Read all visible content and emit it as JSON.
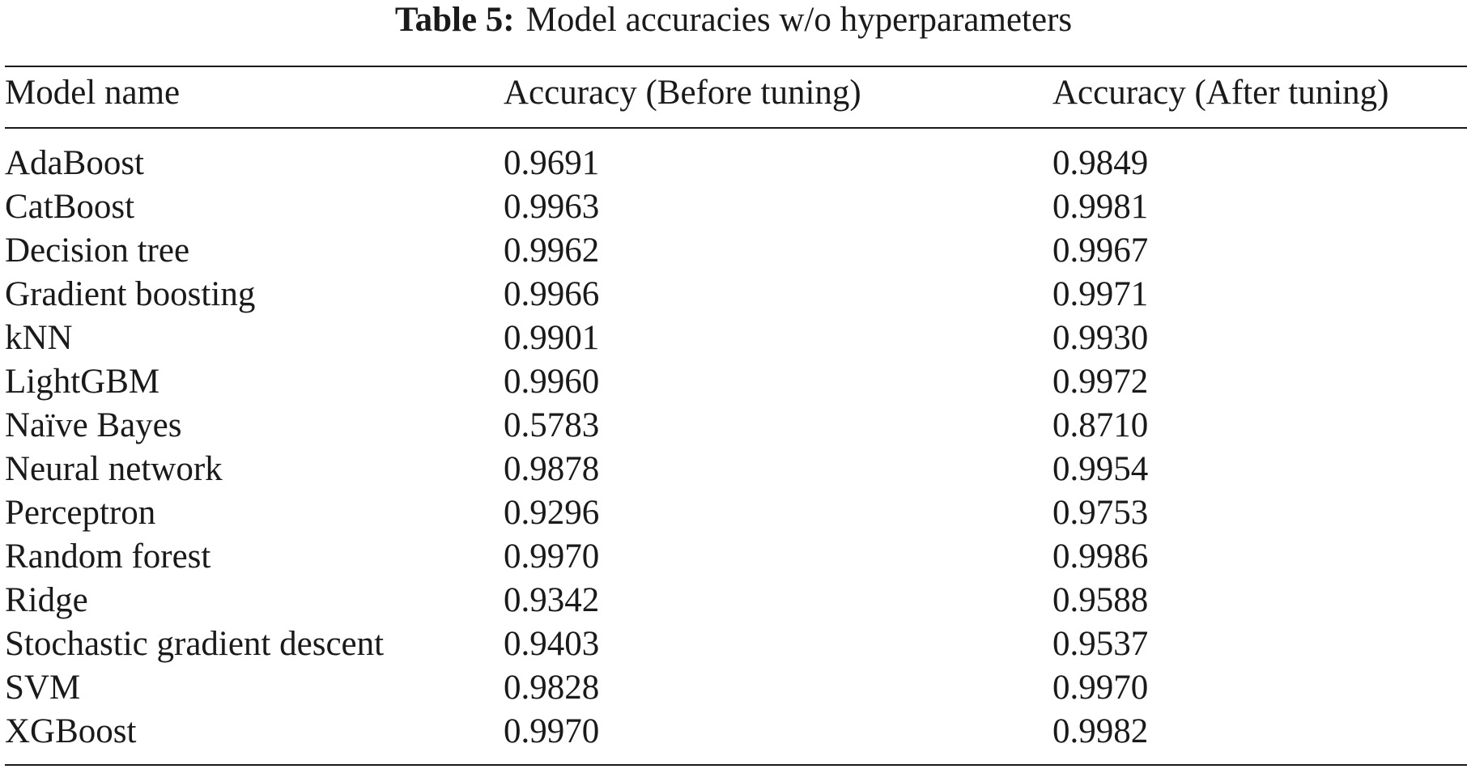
{
  "table": {
    "caption_label": "Table 5:",
    "caption_text": "Model accuracies w/o hyperparameters",
    "columns": [
      "Model name",
      "Accuracy (Before tuning)",
      "Accuracy (After tuning)"
    ],
    "rows": [
      [
        "AdaBoost",
        "0.9691",
        "0.9849"
      ],
      [
        "CatBoost",
        "0.9963",
        "0.9981"
      ],
      [
        "Decision tree",
        "0.9962",
        "0.9967"
      ],
      [
        "Gradient boosting",
        "0.9966",
        "0.9971"
      ],
      [
        "kNN",
        "0.9901",
        "0.9930"
      ],
      [
        "LightGBM",
        "0.9960",
        "0.9972"
      ],
      [
        "Naïve Bayes",
        "0.5783",
        "0.8710"
      ],
      [
        "Neural network",
        "0.9878",
        "0.9954"
      ],
      [
        "Perceptron",
        "0.9296",
        "0.9753"
      ],
      [
        "Random forest",
        "0.9970",
        "0.9986"
      ],
      [
        "Ridge",
        "0.9342",
        "0.9588"
      ],
      [
        "Stochastic gradient descent",
        "0.9403",
        "0.9537"
      ],
      [
        "SVM",
        "0.9828",
        "0.9970"
      ],
      [
        "XGBoost",
        "0.9970",
        "0.9982"
      ]
    ]
  }
}
